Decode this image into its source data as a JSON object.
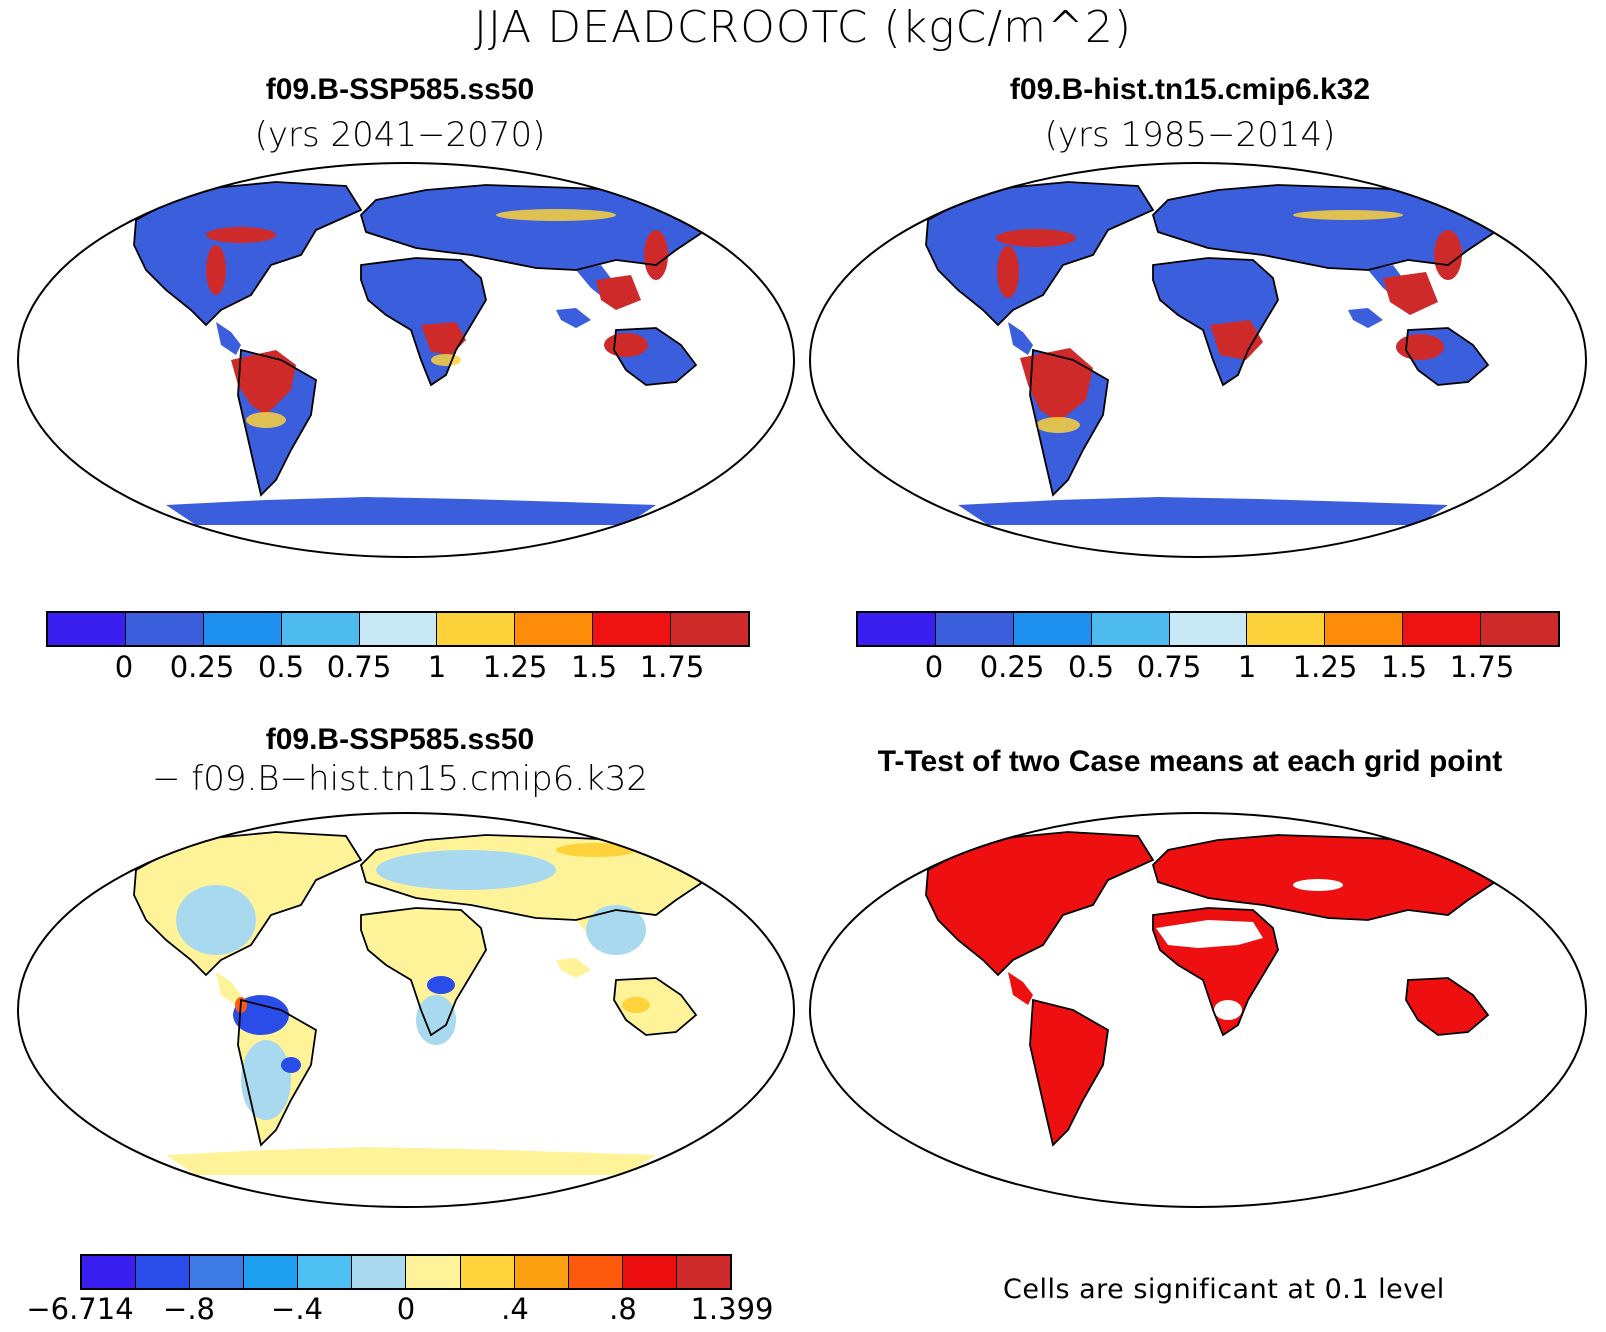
{
  "figure_title": "JJA DEADCROOTC (kgC/m^2)",
  "panels": [
    {
      "title": "f09.B-SSP585.ss50",
      "subtitle": "(yrs 2041−2070)"
    },
    {
      "title": "f09.B-hist.tn15.cmip6.k32",
      "subtitle": "(yrs 1985−2014)"
    },
    {
      "title": "f09.B-SSP585.ss50",
      "subtitle": "− f09.B−hist.tn15.cmip6.k32"
    },
    {
      "title": "T-Test of two Case means at each grid point",
      "subtitle": ""
    }
  ],
  "colorbars": {
    "mean": {
      "colors": [
        "#3a1ff0",
        "#3b5fdc",
        "#1e90f0",
        "#4ebbee",
        "#c8e8f6",
        "#fdd13a",
        "#fd8c0a",
        "#ef1212",
        "#cf2a2a"
      ],
      "labels": [
        "0",
        "0.25",
        "0.5",
        "0.75",
        "1",
        "1.25",
        "1.5",
        "1.75"
      ]
    },
    "diff": {
      "colors": [
        "#3a1ff0",
        "#2a4ce8",
        "#3d7ae6",
        "#1e9ff0",
        "#4fc0f2",
        "#a9d9ef",
        "#fff39a",
        "#fdd23a",
        "#fca212",
        "#fd5a0e",
        "#ee1010",
        "#cf2a2a"
      ],
      "labels": [
        "−6.714",
        "−.8",
        "−.4",
        "0",
        ".4",
        ".8",
        "1.399"
      ]
    }
  },
  "significance_note": "Cells are significant at 0.1 level",
  "chart_data": [
    {
      "type": "heatmap",
      "map": "f09.B-SSP585.ss50 (yrs 2041−2070)",
      "levels": [
        0,
        0.25,
        0.5,
        0.75,
        1,
        1.25,
        1.5,
        1.75
      ],
      "units": "kgC/m^2"
    },
    {
      "type": "heatmap",
      "map": "f09.B-hist.tn15.cmip6.k32 (yrs 1985−2014)",
      "levels": [
        0,
        0.25,
        0.5,
        0.75,
        1,
        1.25,
        1.5,
        1.75
      ],
      "units": "kgC/m^2"
    },
    {
      "type": "heatmap",
      "map": "difference",
      "levels": [
        -6.714,
        -0.8,
        -0.4,
        0,
        0.4,
        0.8,
        1.399
      ],
      "units": "kgC/m^2"
    },
    {
      "type": "heatmap",
      "map": "T-Test",
      "significance_level": 0.1
    }
  ]
}
